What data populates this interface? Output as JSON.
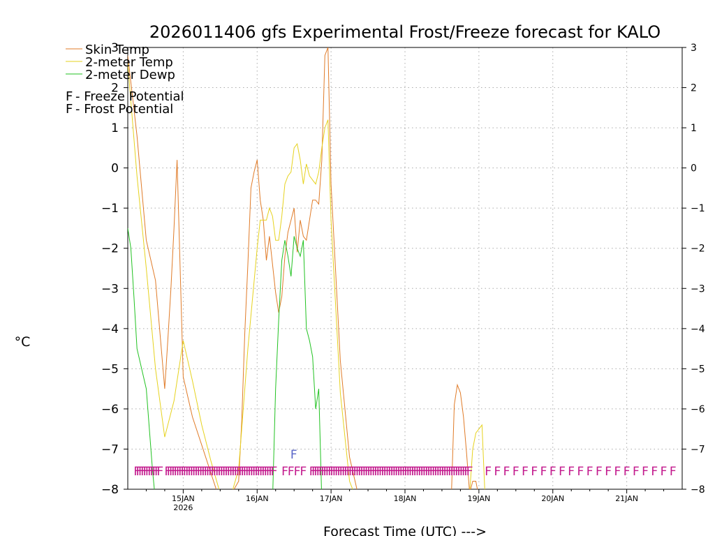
{
  "chart_data": {
    "type": "line",
    "title": "2026011406 gfs Experimental Frost/Freeze forecast for KALO",
    "xlabel": "Forecast Time (UTC) --->",
    "ylabel": "°C",
    "ylim": [
      -8,
      3
    ],
    "xlim": [
      0,
      180
    ],
    "x_unit": "hours after 2026011406 UTC",
    "yticks": [
      3,
      2,
      1,
      0,
      -1,
      -2,
      -3,
      -4,
      -5,
      -6,
      -7,
      -8
    ],
    "yticks_right": [
      "3",
      "2",
      "1",
      "0",
      "-1",
      "-2",
      "-3",
      "-4",
      "-5",
      "-6",
      "-7",
      "-8"
    ],
    "xticks": [
      {
        "x": 18,
        "label": "15JAN",
        "sublabel": "2026"
      },
      {
        "x": 42,
        "label": "16JAN",
        "sublabel": ""
      },
      {
        "x": 66,
        "label": "17JAN",
        "sublabel": ""
      },
      {
        "x": 90,
        "label": "18JAN",
        "sublabel": ""
      },
      {
        "x": 114,
        "label": "19JAN",
        "sublabel": ""
      },
      {
        "x": 138,
        "label": "20JAN",
        "sublabel": ""
      },
      {
        "x": 162,
        "label": "21JAN",
        "sublabel": ""
      }
    ],
    "grid": true,
    "legend": {
      "position": "top-left",
      "entries": [
        {
          "label": "Skin Temp",
          "color": "#e07b28"
        },
        {
          "label": "2-meter Temp",
          "color": "#e6d21e"
        },
        {
          "label": "2-meter Dewp",
          "color": "#22c222"
        }
      ],
      "potential": [
        {
          "symbol": "F",
          "label": " - Freeze Potential",
          "color": "#c2188c"
        },
        {
          "symbol": "F",
          "label": " - Frost Potential",
          "color": "#5a66c8"
        }
      ]
    },
    "series": [
      {
        "name": "Skin Temp",
        "color": "#e07b28",
        "x": [
          0,
          3,
          6,
          9,
          12,
          13,
          14,
          15,
          16,
          18,
          21,
          24,
          27,
          30,
          33,
          36,
          37,
          38,
          39,
          40,
          41,
          42,
          43,
          44,
          45,
          46,
          47,
          48,
          49,
          50,
          51,
          52,
          54,
          55,
          56,
          57,
          58,
          60,
          61,
          62,
          63,
          64,
          65,
          66,
          69,
          72,
          75,
          105,
          106,
          107,
          108,
          109,
          110,
          111,
          112,
          113,
          114
        ],
        "y": [
          2.8,
          0.8,
          -1.8,
          -2.8,
          -5.5,
          -4.3,
          -3.0,
          -1.5,
          0.2,
          -5.2,
          -6.2,
          -6.9,
          -7.6,
          -8.3,
          -8.2,
          -7.8,
          -6.3,
          -4.1,
          -2.4,
          -0.5,
          -0.1,
          0.2,
          -0.8,
          -1.3,
          -2.3,
          -1.7,
          -2.4,
          -3.1,
          -3.6,
          -3.2,
          -2.2,
          -1.6,
          -1.0,
          -2.1,
          -1.3,
          -1.7,
          -1.8,
          -0.8,
          -0.8,
          -0.9,
          0.2,
          2.8,
          3.0,
          -0.4,
          -4.8,
          -7.2,
          -8.2,
          -8.3,
          -5.9,
          -5.4,
          -5.6,
          -6.2,
          -7.1,
          -8.1,
          -7.8,
          -7.8,
          -8.2
        ]
      },
      {
        "name": "2-meter Temp",
        "color": "#e6d21e",
        "x": [
          0,
          3,
          6,
          9,
          12,
          15,
          18,
          21,
          24,
          27,
          30,
          33,
          36,
          39,
          42,
          43,
          44,
          45,
          46,
          47,
          48,
          49,
          50,
          51,
          52,
          53,
          54,
          55,
          56,
          57,
          58,
          59,
          60,
          61,
          62,
          63,
          64,
          65,
          66,
          69,
          72,
          75,
          111,
          112,
          113,
          114,
          115,
          116
        ],
        "y": [
          2.6,
          -0.2,
          -2.5,
          -5.0,
          -6.7,
          -5.8,
          -4.3,
          -5.3,
          -6.4,
          -7.3,
          -8.1,
          -8.3,
          -7.5,
          -4.5,
          -2.0,
          -1.3,
          -1.3,
          -1.3,
          -1.0,
          -1.2,
          -1.8,
          -1.8,
          -1.2,
          -0.4,
          -0.2,
          -0.1,
          0.5,
          0.6,
          0.2,
          -0.4,
          0.1,
          -0.2,
          -0.3,
          -0.4,
          -0.1,
          0.5,
          1.0,
          1.2,
          -1.3,
          -5.6,
          -7.8,
          -8.4,
          -8.1,
          -7.0,
          -6.6,
          -6.5,
          -6.4,
          -8.2
        ]
      },
      {
        "name": "2-meter Dewp",
        "color": "#22c222",
        "x": [
          0,
          1,
          2,
          3,
          6,
          8,
          9,
          47,
          48,
          49,
          50,
          51,
          52,
          53,
          54,
          55,
          56,
          57,
          58,
          59,
          60,
          61,
          62,
          63,
          64,
          65,
          66
        ],
        "y": [
          -1.5,
          -2.0,
          -3.2,
          -4.5,
          -5.5,
          -7.5,
          -8.3,
          -8.3,
          -5.5,
          -3.8,
          -2.3,
          -1.8,
          -2.2,
          -2.7,
          -1.7,
          -2.0,
          -2.2,
          -1.8,
          -4.0,
          -4.3,
          -4.7,
          -6.0,
          -5.5,
          -8.3,
          -8.4,
          -8.4,
          -8.4
        ]
      }
    ],
    "potential_markers": {
      "row_symbol": "F",
      "freeze_color": "#c2188c",
      "frost_color": "#5a66c8",
      "freeze": [
        {
          "from": 3,
          "to": 11,
          "step": 0.75
        },
        {
          "from": 13,
          "to": 48,
          "step": 0.75
        },
        {
          "from": 51,
          "to": 53,
          "step": 2
        },
        {
          "from": 55,
          "to": 57,
          "step": 2
        },
        {
          "from": 60,
          "to": 111,
          "step": 0.75
        },
        {
          "from": 117,
          "to": 179,
          "step": 3
        }
      ],
      "frost": [
        {
          "x": 53,
          "level": "upper"
        }
      ]
    }
  }
}
